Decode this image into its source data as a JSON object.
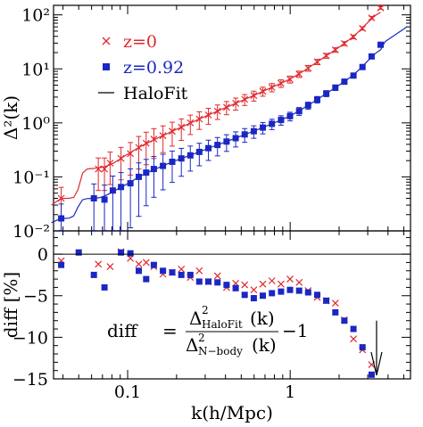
{
  "chart_data": [
    {
      "type": "scatter",
      "panel": "top",
      "xlabel": "k(h/Mpc)",
      "ylabel": "Δ²(k)",
      "xscale": "log",
      "yscale": "log",
      "xlim": [
        0.035,
        5.5
      ],
      "ylim": [
        0.01,
        150
      ],
      "x_ticklabels": [
        "0.1",
        "1"
      ],
      "y_ticklabels": [
        "10⁻²",
        "10⁻¹",
        "10⁰",
        "10¹",
        "10²"
      ],
      "legend_position": "top-left",
      "series": [
        {
          "name": "z=0",
          "marker": "x",
          "color": "#e0282d",
          "x": [
            0.039,
            0.066,
            0.072,
            0.078,
            0.091,
            0.104,
            0.117,
            0.13,
            0.145,
            0.165,
            0.188,
            0.214,
            0.243,
            0.276,
            0.314,
            0.357,
            0.406,
            0.462,
            0.525,
            0.597,
            0.679,
            0.772,
            0.878,
            0.998,
            1.135,
            1.29,
            1.467,
            1.668,
            1.896,
            2.156,
            2.451,
            2.787,
            3.168,
            3.602
          ],
          "y": [
            0.04,
            0.14,
            0.14,
            0.18,
            0.22,
            0.27,
            0.35,
            0.42,
            0.5,
            0.58,
            0.7,
            0.83,
            1.0,
            1.18,
            1.4,
            1.65,
            1.95,
            2.3,
            2.72,
            3.2,
            3.85,
            4.55,
            5.4,
            6.4,
            8.0,
            10.3,
            13.5,
            17.5,
            22.5,
            29.5,
            39,
            56,
            88,
            135
          ]
        },
        {
          "name": "z=0.92",
          "marker": "filled-square",
          "color": "#1a27c2",
          "x": [
            0.039,
            0.062,
            0.072,
            0.081,
            0.091,
            0.104,
            0.117,
            0.13,
            0.145,
            0.165,
            0.188,
            0.214,
            0.243,
            0.276,
            0.314,
            0.357,
            0.406,
            0.462,
            0.525,
            0.597,
            0.679,
            0.772,
            0.878,
            0.998,
            1.135,
            1.29,
            1.467,
            1.668,
            1.896,
            2.156,
            2.451,
            2.787,
            3.168,
            3.602
          ],
          "y": [
            0.017,
            0.04,
            0.038,
            0.056,
            0.065,
            0.076,
            0.1,
            0.12,
            0.14,
            0.16,
            0.19,
            0.22,
            0.25,
            0.29,
            0.34,
            0.39,
            0.45,
            0.52,
            0.61,
            0.7,
            0.82,
            0.96,
            1.13,
            1.33,
            1.65,
            2.1,
            2.7,
            3.5,
            4.5,
            5.8,
            7.5,
            10.8,
            17.0,
            28
          ]
        },
        {
          "name": "HaloFit",
          "marker": "line",
          "color": "#000000"
        }
      ]
    },
    {
      "type": "scatter",
      "panel": "bottom",
      "xlabel": "k(h/Mpc)",
      "ylabel": "diff [%]",
      "xscale": "log",
      "xlim": [
        0.035,
        5.5
      ],
      "ylim": [
        -15,
        2.8
      ],
      "x_ticklabels": [
        "0.1",
        "1"
      ],
      "y_ticklabels": [
        "0",
        "−5",
        "−10",
        "−15"
      ],
      "zero_line": 0,
      "arrow_at_k": 3.4,
      "series": [
        {
          "name": "z=0",
          "marker": "x",
          "color": "#e0282d",
          "x": [
            0.039,
            0.066,
            0.078,
            0.091,
            0.104,
            0.117,
            0.13,
            0.145,
            0.165,
            0.188,
            0.214,
            0.243,
            0.276,
            0.314,
            0.357,
            0.406,
            0.462,
            0.525,
            0.597,
            0.679,
            0.772,
            0.878,
            0.998,
            1.135,
            1.29,
            1.467,
            1.668,
            1.896,
            2.156,
            2.451,
            2.787,
            3.168
          ],
          "y": [
            -0.8,
            -1.2,
            -1.5,
            0.3,
            -0.5,
            -1.2,
            -1.0,
            -1.5,
            -2.4,
            -2.2,
            -1.8,
            -2.8,
            -2.0,
            -3.3,
            -2.6,
            -4.0,
            -3.5,
            -3.7,
            -4.3,
            -3.6,
            -3.2,
            -3.6,
            -3.0,
            -3.4,
            -4.4,
            -5.2,
            -5.6,
            -5.9,
            -7.9,
            -10.2,
            -11.5,
            -13.3
          ]
        },
        {
          "name": "z=0.92",
          "marker": "filled-square",
          "color": "#1a27c2",
          "x": [
            0.039,
            0.05,
            0.062,
            0.072,
            0.091,
            0.104,
            0.117,
            0.13,
            0.145,
            0.165,
            0.188,
            0.214,
            0.243,
            0.276,
            0.314,
            0.357,
            0.406,
            0.462,
            0.525,
            0.597,
            0.679,
            0.772,
            0.878,
            0.998,
            1.135,
            1.29,
            1.467,
            1.668,
            1.896,
            2.156,
            2.451,
            2.787,
            3.168
          ],
          "y": [
            -1.3,
            0.2,
            -2.5,
            -4.0,
            0.2,
            0.1,
            -2.0,
            -3.0,
            -1.3,
            -2.0,
            -2.2,
            -2.5,
            -2.5,
            -3.3,
            -3.3,
            -3.4,
            -3.7,
            -4.1,
            -4.9,
            -5.3,
            -5.0,
            -4.7,
            -4.5,
            -4.3,
            -4.4,
            -4.6,
            -4.9,
            -5.6,
            -7.0,
            -8.0,
            -9.0,
            -11.2,
            -14.5
          ]
        }
      ]
    }
  ],
  "legend": {
    "z0_label": "z=0",
    "z092_label": "z=0.92",
    "halofit_label": "HaloFit"
  },
  "formula": {
    "lhs": "diff",
    "equals": "=",
    "num_symbol": "Δ",
    "num_sup": "2",
    "num_sub": "HaloFit",
    "num_arg": "(k)",
    "den_symbol": "Δ",
    "den_sup": "2",
    "den_sub": "N−body",
    "den_arg": "(k)",
    "minus_one": "−1"
  },
  "colors": {
    "red": "#e0282d",
    "blue": "#1a27c2",
    "black": "#000000"
  }
}
